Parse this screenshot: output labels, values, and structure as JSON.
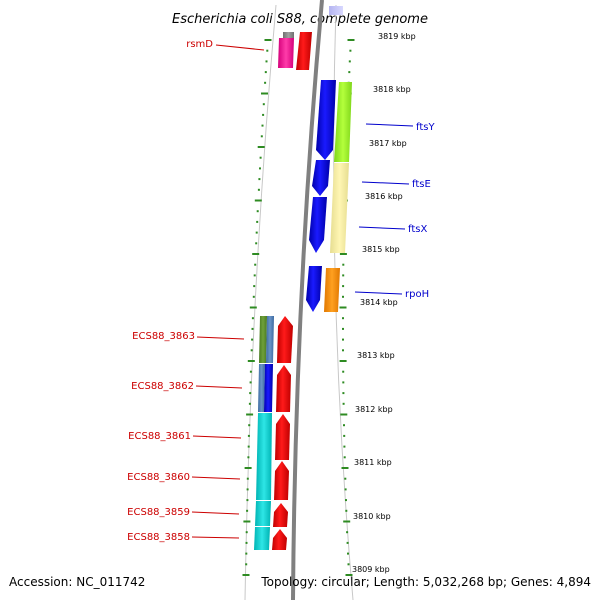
{
  "title": "Escherichia coli S88, complete genome",
  "footer": {
    "accession": "Accession: NC_011742",
    "info": "Topology: circular; Length: 5,032,268 bp; Genes: 4,894"
  },
  "colors": {
    "backbone": "#808080",
    "track_outline": "#c0c0c0",
    "tick": "#2e8b22",
    "left_label": "#cc0000",
    "right_label": "#0000cc",
    "red_gene": "#ff0000",
    "blue_gene": "#0000ee",
    "magenta_gene": "#ff1493",
    "cyan_gene": "#00c8c8"
  },
  "ticks": [
    {
      "label": "3819 kbp"
    },
    {
      "label": "3818 kbp"
    },
    {
      "label": "3817 kbp"
    },
    {
      "label": "3816 kbp"
    },
    {
      "label": "3815 kbp"
    },
    {
      "label": "3814 kbp"
    },
    {
      "label": "3813 kbp"
    },
    {
      "label": "3812 kbp"
    },
    {
      "label": "3811 kbp"
    },
    {
      "label": "3810 kbp"
    },
    {
      "label": "3809 kbp"
    }
  ],
  "left_genes": [
    {
      "label": "rsmD"
    },
    {
      "label": "ECS88_3863"
    },
    {
      "label": "ECS88_3862"
    },
    {
      "label": "ECS88_3861"
    },
    {
      "label": "ECS88_3860"
    },
    {
      "label": "ECS88_3859"
    },
    {
      "label": "ECS88_3858"
    }
  ],
  "right_genes": [
    {
      "label": "ftsY"
    },
    {
      "label": "ftsE"
    },
    {
      "label": "ftsX"
    },
    {
      "label": "rpoH"
    }
  ]
}
